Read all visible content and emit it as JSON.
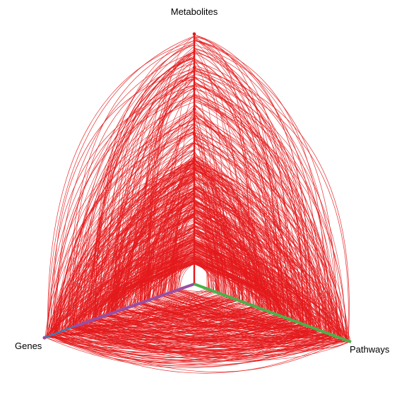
{
  "figure": {
    "type": "hive-plot",
    "axes": [
      {
        "label": "Metabolites",
        "color": "#e41a1c"
      },
      {
        "label": "Genes",
        "colors": [
          "#377eb8",
          "#984ea3"
        ]
      },
      {
        "label": "Pathways",
        "color": "#4daf4a"
      }
    ],
    "edge_color": "#e41a1c",
    "background": "#ffffff"
  }
}
